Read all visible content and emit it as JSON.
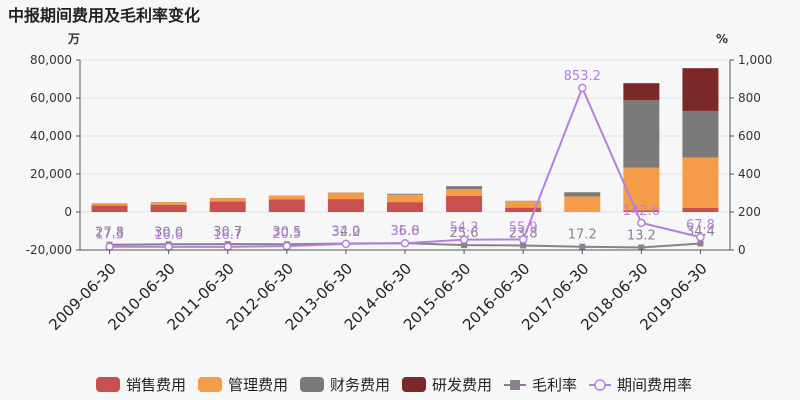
{
  "chart_data": {
    "type": "bar",
    "title": "中报期间费用及毛利率变化",
    "left_unit": "万",
    "right_unit": "%",
    "categories": [
      "2009-06-30",
      "2010-06-30",
      "2011-06-30",
      "2012-06-30",
      "2013-06-30",
      "2014-06-30",
      "2015-06-30",
      "2016-06-30",
      "2017-06-30",
      "2018-06-30",
      "2019-06-30"
    ],
    "ylim_left": [
      -20000,
      80000
    ],
    "yticks_left": [
      "-20,000",
      "0",
      "20,000",
      "40,000",
      "60,000",
      "80,000"
    ],
    "ylim_right": [
      0,
      1000
    ],
    "yticks_right": [
      "0",
      "200",
      "400",
      "600",
      "800",
      "1,000"
    ],
    "bar_series": [
      {
        "name": "销售费用",
        "color": "#c9504f",
        "values": [
          3400,
          3800,
          5500,
          6700,
          6800,
          5200,
          8500,
          2300,
          0,
          800,
          2200
        ]
      },
      {
        "name": "管理费用",
        "color": "#f59c49",
        "values": [
          1100,
          1300,
          1800,
          1900,
          3400,
          3900,
          3600,
          3500,
          8200,
          22500,
          26500
        ]
      },
      {
        "name": "财务费用",
        "color": "#7a7a7a",
        "values": [
          100,
          100,
          100,
          100,
          100,
          500,
          1500,
          100,
          2200,
          35500,
          24500
        ]
      },
      {
        "name": "研发费用",
        "color": "#7b2928",
        "values": [
          0,
          0,
          0,
          0,
          0,
          0,
          0,
          0,
          0,
          9000,
          22500
        ]
      }
    ],
    "line_series": [
      {
        "name": "毛利率",
        "color": "#8c7f8f",
        "values": [
          27.8,
          30.0,
          30.7,
          30.5,
          34.0,
          36.0,
          25.6,
          23.8,
          17.2,
          13.2,
          34.4
        ],
        "labels": [
          "27.8",
          "30.0",
          "30.7",
          "30.5",
          "34.0",
          "36.0",
          "25.6",
          "23.8",
          "17.2",
          "13.2",
          "34.4"
        ]
      },
      {
        "name": "期间费用率",
        "color": "#b67fe0",
        "values": [
          17.3,
          16.6,
          16.7,
          20.5,
          32.2,
          35.8,
          54.3,
          55.9,
          853.2,
          142.6,
          67.8
        ],
        "labels": [
          "17.3",
          "16.6",
          "16.7",
          "20.5",
          "32.2",
          "35.8",
          "54.3",
          "55.9",
          "853.2",
          "142.6",
          "67.8"
        ]
      }
    ],
    "grid": true,
    "legend_position": "bottom"
  }
}
